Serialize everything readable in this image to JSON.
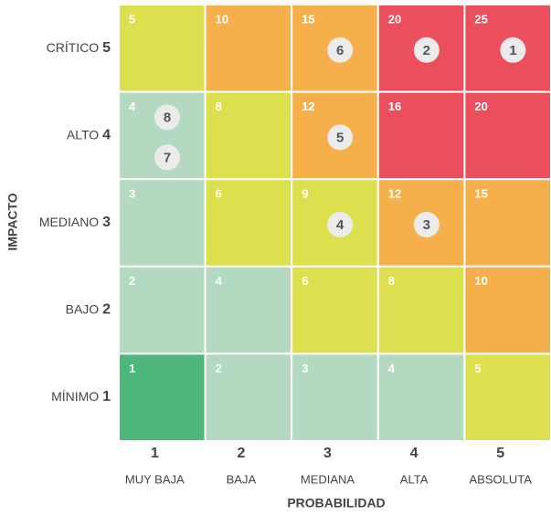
{
  "axis_y": {
    "title": "IMPACTO",
    "levels": [
      {
        "name": "CRÍTICO",
        "number": 5
      },
      {
        "name": "ALTO",
        "number": 4
      },
      {
        "name": "MEDIANO",
        "number": 3
      },
      {
        "name": "BAJO",
        "number": 2
      },
      {
        "name": "MÍNIMO",
        "number": 1
      }
    ]
  },
  "axis_x": {
    "title": "PROBABILIDAD",
    "levels": [
      {
        "number": 1,
        "name": "MUY BAJA"
      },
      {
        "number": 2,
        "name": "BAJA"
      },
      {
        "number": 3,
        "name": "MEDIANA"
      },
      {
        "number": 4,
        "name": "ALTA"
      },
      {
        "number": 5,
        "name": "ABSOLUTA"
      }
    ]
  },
  "cells": [
    [
      {
        "score": 5,
        "color": "#dde04e"
      },
      {
        "score": 10,
        "color": "#f5b04b"
      },
      {
        "score": 15,
        "color": "#f5b04b",
        "risks": [
          6
        ]
      },
      {
        "score": 20,
        "color": "#ea4f5b",
        "risks": [
          2
        ]
      },
      {
        "score": 25,
        "color": "#ea4f5b",
        "risks": [
          1
        ]
      }
    ],
    [
      {
        "score": 4,
        "color": "#b3d9c0",
        "risks": [
          8,
          7
        ]
      },
      {
        "score": 8,
        "color": "#dde04e"
      },
      {
        "score": 12,
        "color": "#f5b04b",
        "risks": [
          5
        ]
      },
      {
        "score": 16,
        "color": "#ea4f5b"
      },
      {
        "score": 20,
        "color": "#ea4f5b"
      }
    ],
    [
      {
        "score": 3,
        "color": "#b3d9c0"
      },
      {
        "score": 6,
        "color": "#dde04e"
      },
      {
        "score": 9,
        "color": "#dde04e",
        "risks": [
          4
        ]
      },
      {
        "score": 12,
        "color": "#f5b04b",
        "risks": [
          3
        ]
      },
      {
        "score": 15,
        "color": "#f5b04b"
      }
    ],
    [
      {
        "score": 2,
        "color": "#b3d9c0"
      },
      {
        "score": 4,
        "color": "#b3d9c0"
      },
      {
        "score": 6,
        "color": "#dde04e"
      },
      {
        "score": 8,
        "color": "#dde04e"
      },
      {
        "score": 10,
        "color": "#f5b04b"
      }
    ],
    [
      {
        "score": 1,
        "color": "#4db67a"
      },
      {
        "score": 2,
        "color": "#b3d9c0"
      },
      {
        "score": 3,
        "color": "#b3d9c0"
      },
      {
        "score": 4,
        "color": "#b3d9c0"
      },
      {
        "score": 5,
        "color": "#dde04e"
      }
    ]
  ]
}
